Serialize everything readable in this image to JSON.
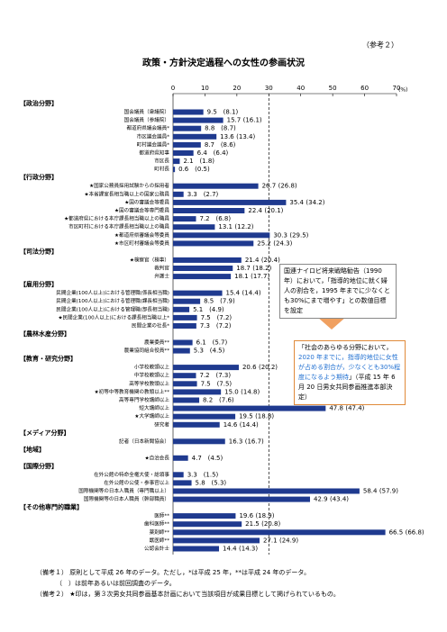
{
  "reference": "（参考２）",
  "chart_data": {
    "type": "bar",
    "title": "政策・方針決定過程への女性の参画状況",
    "color": "#1f3a8f",
    "xlim": [
      0,
      70
    ],
    "xticks": [
      0,
      10,
      20,
      30,
      40,
      50,
      60,
      70
    ],
    "x_unit": "(%)",
    "reference_line": 30,
    "groups": [
      {
        "label": "【政治分野】",
        "categories": [
          "国会議員（衆議院）",
          "国会議員（参議院）",
          "都道府県議会議員*",
          "市区議会議員*",
          "町村議会議員*",
          "都道府県知事",
          "市区長",
          "町村長"
        ],
        "values": [
          9.5,
          15.7,
          8.8,
          13.6,
          8.7,
          6.4,
          2.1,
          0.6
        ],
        "value_labels": [
          "9.5",
          "15.7",
          "8.8",
          "13.6",
          "8.7",
          "6.4",
          "2.1",
          "0.6"
        ],
        "previous_labels": [
          "(8.1)",
          "(16.1)",
          "(8.7)",
          "(13.4)",
          "(8.6)",
          "(6.4)",
          "(1.8)",
          "(0.5)"
        ]
      },
      {
        "label": "【行政分野】",
        "categories": [
          "★国家公務員採用試験からの採用者",
          "★本省課室長相当職以上の国家公務員",
          "★国の審議会等委員",
          "★国の審議会等専門委員",
          "★都道府県における本庁課長相当職以上の職員",
          "市区町村における本庁課長相当職以上の職員",
          "★都道府県審議会等委員",
          "★市区町村審議会等委員"
        ],
        "values": [
          26.7,
          3.3,
          35.4,
          22.4,
          7.2,
          13.1,
          30.3,
          25.2
        ],
        "value_labels": [
          "26.7",
          "3.3",
          "35.4",
          "22.4",
          "7.2",
          "13.1",
          "30.3",
          "25.2"
        ],
        "previous_labels": [
          "(26.8)",
          "(2.7)",
          "(34.2)",
          "(20.1)",
          "(6.8)",
          "(12.2)",
          "(29.5)",
          "(24.3)"
        ]
      },
      {
        "label": "【司法分野】",
        "categories": [
          "★検察官（検事）",
          "裁判官",
          "弁護士"
        ],
        "values": [
          21.4,
          18.7,
          18.1
        ],
        "value_labels": [
          "21.4",
          "18.7",
          "18.1"
        ],
        "previous_labels": [
          "(20.4)",
          "(18.2)",
          "(17.7)"
        ]
      },
      {
        "label": "【雇用分野】",
        "categories": [
          "民間企業(100人以上)における管理職(係長相当職)",
          "民間企業(100人以上)における管理職(課長相当職)",
          "民間企業(100人以上)における管理職(部長相当職)",
          "★民間企業(100人以上)における課長相当職以上*",
          "民間企業の社長*"
        ],
        "values": [
          15.4,
          8.5,
          5.1,
          7.5,
          7.3
        ],
        "value_labels": [
          "15.4",
          "8.5",
          "5.1",
          "7.5",
          "7.3"
        ],
        "previous_labels": [
          "(14.4)",
          "(7.9)",
          "(4.9)",
          "(7.2)",
          "(7.2)"
        ]
      },
      {
        "label": "【農林水産分野】",
        "categories": [
          "農業委員**",
          "農業協同組合役員**"
        ],
        "values": [
          6.1,
          5.3
        ],
        "value_labels": [
          "6.1",
          "5.3"
        ],
        "previous_labels": [
          "(5.7)",
          "(4.5)"
        ]
      },
      {
        "label": "【教育・研究分野】",
        "categories": [
          "小学校教頭以上",
          "中学校教頭以上",
          "高等学校教頭以上",
          "★初等中等教育機関の教頭以上**",
          "高等専門学校講師以上",
          "短大講師以上",
          "★大学講師以上",
          "研究者"
        ],
        "values": [
          20.6,
          7.2,
          7.5,
          15.0,
          8.2,
          47.8,
          19.5,
          14.6
        ],
        "value_labels": [
          "20.6",
          "7.2",
          "7.5",
          "15.0",
          "8.2",
          "47.8",
          "19.5",
          "14.6"
        ],
        "previous_labels": [
          "(20.2)",
          "(7.3)",
          "(7.5)",
          "(14.8)",
          "(7.6)",
          "(47.4)",
          "(18.8)",
          "(14.4)"
        ]
      },
      {
        "label": "【メディア分野】",
        "categories": [
          "記者（日本新聞協会）"
        ],
        "values": [
          16.3
        ],
        "value_labels": [
          "16.3"
        ],
        "previous_labels": [
          "(16.7)"
        ]
      },
      {
        "label": "【地域】",
        "categories": [
          "★自治会長"
        ],
        "values": [
          4.7
        ],
        "value_labels": [
          "4.7"
        ],
        "previous_labels": [
          "(4.5)"
        ]
      },
      {
        "label": "【国際分野】",
        "categories": [
          "在外公館の特命全権大使・総領事",
          "在外公館の公使・参事官以上",
          "国際機関等の日本人職員（専門職以上）",
          "国際機関等の日本人職員（幹部職員）"
        ],
        "values": [
          3.3,
          5.8,
          58.4,
          42.9
        ],
        "value_labels": [
          "3.3",
          "5.8",
          "58.4",
          "42.9"
        ],
        "previous_labels": [
          "(1.5)",
          "(5.3)",
          "(57.9)",
          "(43.4)"
        ]
      },
      {
        "label": "【その他専門的職業】",
        "categories": [
          "医師**",
          "歯科医師**",
          "薬剤師**",
          "獣医師**",
          "公認会計士"
        ],
        "values": [
          19.6,
          21.5,
          66.5,
          27.1,
          14.4
        ],
        "value_labels": [
          "19.6",
          "21.5",
          "66.5",
          "27.1",
          "14.4"
        ],
        "previous_labels": [
          "(18.9)",
          "(20.8)",
          "(66.8)",
          "(24.9)",
          "(14.3)"
        ]
      }
    ],
    "annotations": [
      {
        "text_parts": [
          "国連ナイロビ将来戦略勧告（1990 年）において，「指導的地位に就く婦人の割合を，1995 年までに少なくとも30%にまで増やす」との数値目標を設定"
        ]
      },
      {
        "text_parts": [
          "「社会のあらゆる分野において，",
          "2020 年までに，指導的地位に女性が占める割合が，少なくとも30%程度になるよう期待",
          "」（平成 15 年 6 月 20 日男女共同参画推進本部決定）"
        ]
      }
    ]
  },
  "notes": [
    "（備考１） 原則として平成 26 年のデータ。ただし，*は平成 25 年，**は平成 24 年のデータ。",
    "（　）は前年あるいは前回調査のデータ。",
    "（備考２） ★印は，第３次男女共同参画基本計画において当該項目が成果目標として掲げられているもの。"
  ]
}
